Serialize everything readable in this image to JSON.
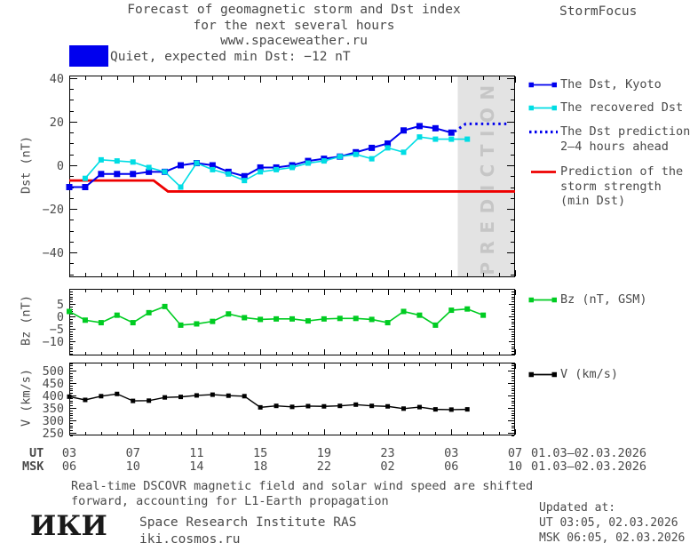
{
  "header": {
    "title_line1": "Forecast of geomagnetic storm and Dst index",
    "title_line2": "for the next several hours",
    "title_line3": "www.spaceweather.ru",
    "brand": "StormFocus",
    "status_label": "Quiet, expected min Dst: −12 nT",
    "status_color": "#0000ee"
  },
  "colors": {
    "kyoto_blue": "#0000ee",
    "recovered_cyan": "#00dde4",
    "prediction_red": "#ee0000",
    "bz_green": "#00cc22",
    "v_black": "#000000",
    "band_gray": "#e3e3e3",
    "band_text_gray": "#c6c6c6"
  },
  "chart_data": [
    {
      "id": "dst",
      "type": "line",
      "ylabel": "Dst (nT)",
      "ylim": [
        -51.4,
        41.2
      ],
      "yticks": [
        40,
        20,
        0,
        -20,
        -40
      ],
      "ytick_labels": [
        "40",
        "20",
        "0",
        "−20",
        "−40"
      ],
      "x_hours_range": [
        3,
        31
      ],
      "prediction_band": {
        "start_hour": 27.4,
        "label": "PREDICTION"
      },
      "series": [
        {
          "name": "Prediction of the storm strength (min Dst)",
          "color": "#ee0000",
          "style": "solid",
          "width": 2.8,
          "marker": false,
          "marker_size": 0,
          "x": [
            3,
            8.3,
            9.2,
            31
          ],
          "values": [
            -7,
            -7,
            -12,
            -12
          ]
        },
        {
          "name": "The Dst, Kyoto",
          "color": "#0000ee",
          "style": "solid",
          "width": 2,
          "marker": true,
          "marker_size": 7,
          "x": [
            3,
            4,
            5,
            6,
            7,
            8,
            9,
            10,
            11,
            12,
            13,
            14,
            15,
            16,
            17,
            18,
            19,
            20,
            21,
            22,
            23,
            24,
            25,
            26,
            27
          ],
          "values": [
            -10,
            -10,
            -4,
            -4,
            -4,
            -3,
            -3,
            0,
            1,
            0,
            -3,
            -5,
            -1,
            -1,
            0,
            2,
            3,
            4,
            6,
            8,
            10,
            16,
            18,
            17,
            15
          ]
        },
        {
          "name": "The recovered Dst",
          "color": "#00dde4",
          "style": "solid",
          "width": 1.6,
          "marker": true,
          "marker_size": 6,
          "x": [
            4,
            5,
            6,
            7,
            8,
            9,
            10,
            11,
            12,
            13,
            14,
            15,
            16,
            17,
            18,
            19,
            20,
            21,
            22,
            23,
            24,
            25,
            26,
            27,
            28
          ],
          "values": [
            -6,
            2.5,
            2,
            1.5,
            -1,
            -3,
            -10,
            1,
            -2,
            -4,
            -7,
            -3,
            -2,
            -1,
            1,
            2,
            4,
            5,
            3,
            8,
            6,
            13,
            12,
            12,
            12
          ]
        },
        {
          "name": "The Dst prediction 2–4 hours ahead",
          "color": "#0000ee",
          "style": "dotted",
          "width": 3,
          "marker": false,
          "marker_size": 0,
          "x": [
            27.2,
            27.9,
            30.6
          ],
          "values": [
            15.5,
            19,
            19
          ]
        }
      ]
    },
    {
      "id": "bz",
      "type": "line",
      "ylabel": "Bz (nT)",
      "ylim": [
        -15.7,
        11.1
      ],
      "yticks": [
        5,
        0,
        -5,
        -10
      ],
      "ytick_labels": [
        "5",
        "0",
        "−5",
        "−10"
      ],
      "x_hours_range": [
        3,
        31
      ],
      "series": [
        {
          "name": "Bz (nT, GSM)",
          "color": "#00cc22",
          "style": "solid",
          "width": 1.6,
          "marker": true,
          "marker_size": 6,
          "x": [
            3,
            4,
            5,
            6,
            7,
            8,
            9,
            10,
            11,
            12,
            13,
            14,
            15,
            16,
            17,
            18,
            19,
            20,
            21,
            22,
            23,
            24,
            25,
            26,
            27,
            28,
            29
          ],
          "values": [
            2,
            -1.5,
            -2.5,
            0.5,
            -2.5,
            1.5,
            4,
            -3.5,
            -3,
            -2,
            1,
            -0.5,
            -1.2,
            -1,
            -1,
            -1.8,
            -1,
            -0.8,
            -0.8,
            -1.2,
            -2.5,
            2,
            0.5,
            -3.5,
            2.5,
            3,
            0.5
          ]
        }
      ]
    },
    {
      "id": "v",
      "type": "line",
      "ylabel": "V (km/s)",
      "ylim": [
        239,
        532
      ],
      "yticks": [
        500,
        450,
        400,
        350,
        300,
        250
      ],
      "ytick_labels": [
        "500",
        "450",
        "400",
        "350",
        "300",
        "250"
      ],
      "x_hours_range": [
        3,
        31
      ],
      "series": [
        {
          "name": "V (km/s)",
          "color": "#000000",
          "style": "solid",
          "width": 1.4,
          "marker": true,
          "marker_size": 5,
          "x": [
            3,
            4,
            5,
            6,
            7,
            8,
            9,
            10,
            11,
            12,
            13,
            14,
            15,
            16,
            17,
            18,
            19,
            20,
            21,
            22,
            23,
            24,
            25,
            26,
            27,
            28
          ],
          "values": [
            395,
            382,
            397,
            406,
            378,
            379,
            392,
            394,
            400,
            403,
            399,
            397,
            352,
            358,
            354,
            357,
            356,
            358,
            363,
            358,
            356,
            347,
            353,
            344,
            343,
            344
          ]
        }
      ]
    }
  ],
  "xaxis": {
    "ut_row_label": "UT",
    "msk_row_label": "MSK",
    "ticks": [
      {
        "hour": 3,
        "ut": "03",
        "msk": "06"
      },
      {
        "hour": 7,
        "ut": "07",
        "msk": "10"
      },
      {
        "hour": 11,
        "ut": "11",
        "msk": "14"
      },
      {
        "hour": 15,
        "ut": "15",
        "msk": "18"
      },
      {
        "hour": 19,
        "ut": "19",
        "msk": "22"
      },
      {
        "hour": 23,
        "ut": "23",
        "msk": "02"
      },
      {
        "hour": 27,
        "ut": "03",
        "msk": "06"
      },
      {
        "hour": 31,
        "ut": "07",
        "msk": "10"
      }
    ],
    "ut_date_range": "01.03–02.03.2026",
    "msk_date_range": "01.03–02.03.2026"
  },
  "legend": {
    "dst": [
      {
        "key": "line-squares",
        "color": "#0000ee",
        "label_lines": [
          "The Dst, Kyoto"
        ]
      },
      {
        "key": "line-squares",
        "color": "#00dde4",
        "label_lines": [
          "The recovered Dst"
        ]
      },
      {
        "key": "dotted",
        "color": "#0000ee",
        "label_lines": [
          "The Dst prediction",
          "2–4 hours ahead"
        ]
      },
      {
        "key": "line",
        "color": "#ee0000",
        "label_lines": [
          "Prediction of the",
          "storm strength",
          "(min Dst)"
        ]
      }
    ],
    "bz": [
      {
        "key": "line-squares",
        "color": "#00cc22",
        "label_lines": [
          "Bz (nT, GSM)"
        ]
      }
    ],
    "v": [
      {
        "key": "line-squares",
        "color": "#000000",
        "label_lines": [
          "V (km/s)"
        ]
      }
    ]
  },
  "footer": {
    "note_line1": "Real-time DSCOVR magnetic field and solar wind speed are shifted",
    "note_line2": "forward, accounting for L1-Earth propagation",
    "logo": "ИКИ",
    "org_name": "Space Research Institute RAS",
    "org_site": "iki.cosmos.ru",
    "updated_label": "Updated at:",
    "updated_ut": "UT  03:05, 02.03.2026",
    "updated_msk": "MSK 06:05, 02.03.2026"
  }
}
